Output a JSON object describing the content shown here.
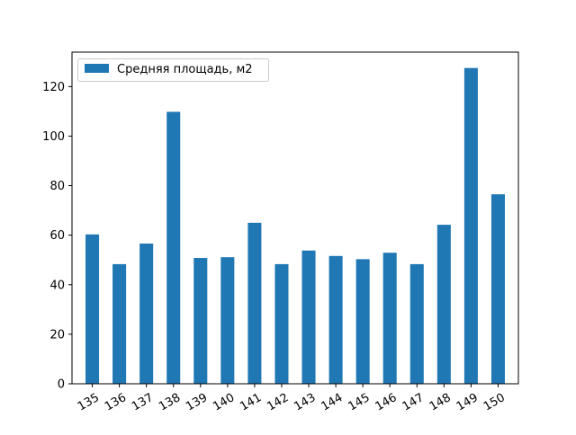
{
  "chart_data": {
    "type": "bar",
    "categories": [
      "135",
      "136",
      "137",
      "138",
      "139",
      "140",
      "141",
      "142",
      "143",
      "144",
      "145",
      "146",
      "147",
      "148",
      "149",
      "150"
    ],
    "series": [
      {
        "name": "Средняя площадь, м2",
        "color": "#1f77b4",
        "values": [
          60.3,
          48.3,
          56.6,
          109.8,
          50.8,
          51.1,
          65.0,
          48.3,
          53.8,
          51.6,
          50.3,
          52.9,
          48.3,
          64.2,
          127.5,
          76.5
        ]
      }
    ],
    "title": "",
    "xlabel": "",
    "ylabel": "",
    "ylim": [
      0,
      133.9
    ],
    "yticks": [
      0,
      20,
      40,
      60,
      80,
      100,
      120
    ],
    "xtick_rotation_deg": 30,
    "legend": "top-left",
    "grid": false
  }
}
